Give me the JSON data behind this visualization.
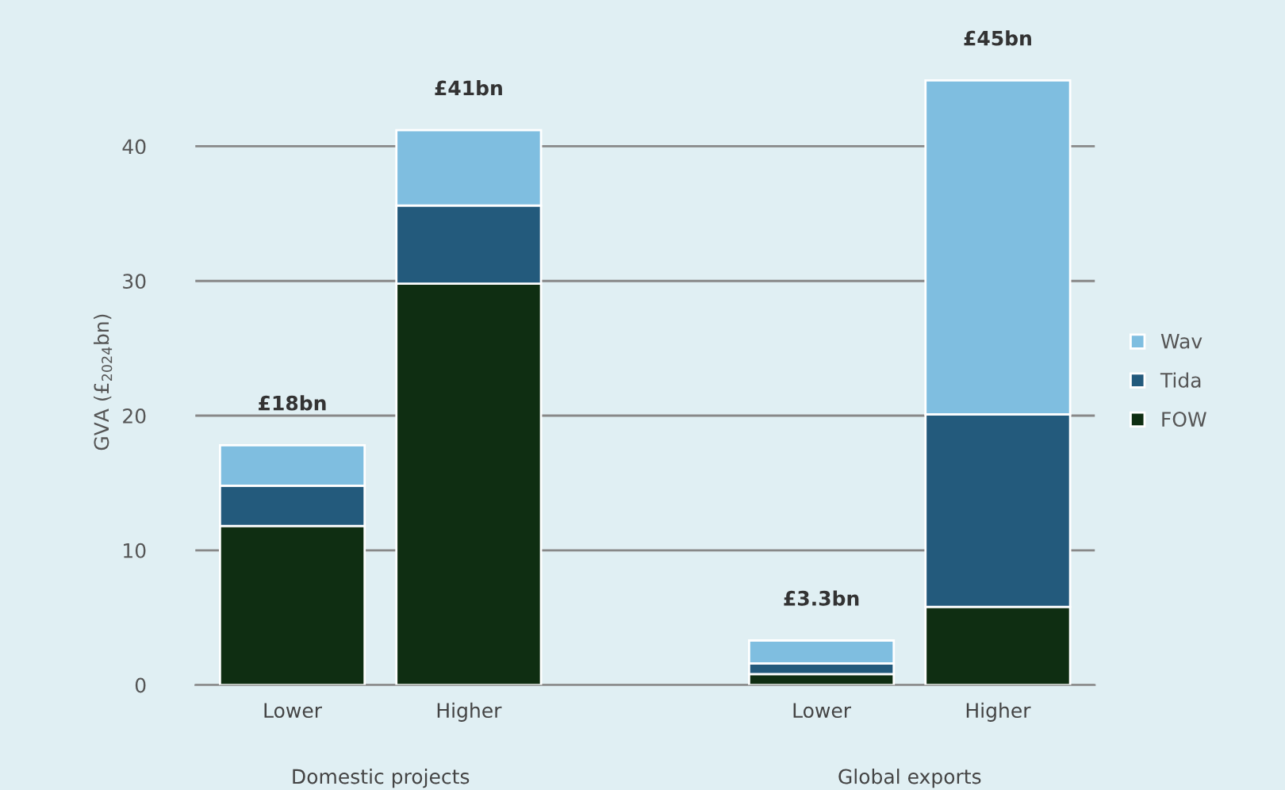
{
  "chart_data": {
    "type": "bar",
    "stacked": true,
    "ylabel": "GVA (£$_{2024}$bn)",
    "categories": [
      "Lower",
      "Higher",
      null,
      "Lower",
      "Higher"
    ],
    "series": [
      {
        "name": "FOW",
        "color": "#0f2e12",
        "values": [
          11.8,
          29.8,
          null,
          0.8,
          5.8
        ]
      },
      {
        "name": "Tida",
        "color": "#235a7c",
        "values": [
          3.0,
          5.8,
          null,
          0.8,
          14.3
        ]
      },
      {
        "name": "Wav",
        "color": "#7fbee0",
        "values": [
          3.0,
          5.6,
          null,
          1.7,
          24.8
        ]
      }
    ],
    "totals": [
      "£18bn",
      "£41bn",
      null,
      "£3.3bn",
      "£45bn"
    ],
    "annotations": [
      "Domestic projects",
      "Global exports"
    ],
    "ylim": [
      0,
      45
    ],
    "yticks": [
      0,
      10,
      20,
      30,
      40
    ],
    "grid": "y",
    "legend": "right"
  }
}
